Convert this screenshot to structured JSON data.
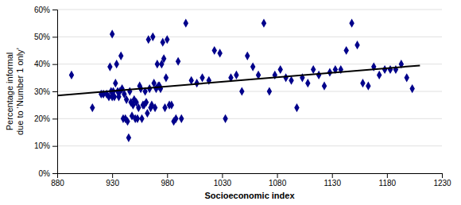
{
  "chart_data": {
    "type": "scatter",
    "title": "",
    "xlabel": "Socioeconomic index",
    "ylabel": "Percentage informal\ndue to ‘Number 1 only’",
    "xlim": [
      880,
      1230
    ],
    "ylim": [
      0.0,
      0.6
    ],
    "xticks": [
      880,
      930,
      980,
      1030,
      1080,
      1130,
      1180,
      1230
    ],
    "yticks": [
      {
        "value": 0.0,
        "label": "0%"
      },
      {
        "value": 0.1,
        "label": "10%"
      },
      {
        "value": 0.2,
        "label": "20%"
      },
      {
        "value": 0.3,
        "label": "30%"
      },
      {
        "value": 0.4,
        "label": "40%"
      },
      {
        "value": 0.5,
        "label": "50%"
      },
      {
        "value": 0.6,
        "label": "60%"
      }
    ],
    "grid": "y",
    "series": [
      {
        "type": "scatter",
        "color": "#00008B",
        "marker": "diamond",
        "x": [
          893,
          912,
          920,
          922,
          925,
          927,
          928,
          929,
          930,
          930,
          931,
          932,
          933,
          934,
          935,
          936,
          937,
          938,
          939,
          940,
          941,
          942,
          943,
          944,
          945,
          946,
          947,
          948,
          949,
          950,
          951,
          952,
          953,
          954,
          955,
          956,
          957,
          958,
          959,
          960,
          961,
          962,
          963,
          964,
          965,
          966,
          967,
          968,
          969,
          970,
          971,
          972,
          973,
          974,
          975,
          976,
          977,
          978,
          979,
          980,
          982,
          984,
          986,
          988,
          990,
          993,
          997,
          1002,
          1007,
          1012,
          1018,
          1023,
          1028,
          1033,
          1038,
          1043,
          1048,
          1053,
          1058,
          1063,
          1068,
          1073,
          1078,
          1083,
          1088,
          1093,
          1098,
          1103,
          1108,
          1113,
          1118,
          1123,
          1128,
          1133,
          1138,
          1143,
          1148,
          1153,
          1158,
          1163,
          1168,
          1173,
          1178,
          1183,
          1188,
          1193,
          1198,
          1203
        ],
        "values": [
          0.36,
          0.24,
          0.29,
          0.29,
          0.29,
          0.28,
          0.39,
          0.3,
          0.28,
          0.51,
          0.3,
          0.28,
          0.33,
          0.4,
          0.3,
          0.28,
          0.3,
          0.43,
          0.31,
          0.2,
          0.29,
          0.2,
          0.27,
          0.19,
          0.13,
          0.3,
          0.26,
          0.21,
          0.25,
          0.27,
          0.2,
          0.26,
          0.2,
          0.24,
          0.32,
          0.31,
          0.2,
          0.25,
          0.25,
          0.3,
          0.26,
          0.22,
          0.49,
          0.31,
          0.24,
          0.25,
          0.5,
          0.33,
          0.24,
          0.31,
          0.4,
          0.32,
          0.32,
          0.31,
          0.4,
          0.48,
          0.42,
          0.24,
          0.35,
          0.49,
          0.25,
          0.25,
          0.19,
          0.2,
          0.41,
          0.2,
          0.55,
          0.34,
          0.33,
          0.35,
          0.34,
          0.45,
          0.44,
          0.2,
          0.35,
          0.36,
          0.3,
          0.43,
          0.39,
          0.36,
          0.55,
          0.3,
          0.36,
          0.38,
          0.35,
          0.34,
          0.24,
          0.35,
          0.33,
          0.38,
          0.36,
          0.32,
          0.37,
          0.38,
          0.38,
          0.45,
          0.55,
          0.47,
          0.33,
          0.32,
          0.39,
          0.36,
          0.38,
          0.38,
          0.38,
          0.4,
          0.35,
          0.31
        ]
      },
      {
        "type": "line",
        "color": "#000000",
        "x": [
          880,
          1210
        ],
        "values": [
          0.285,
          0.395
        ]
      }
    ]
  }
}
